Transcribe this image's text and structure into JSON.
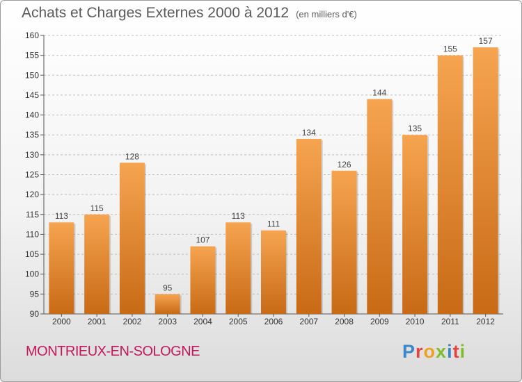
{
  "header": {
    "title": "Achats et Charges Externes 2000 à 2012",
    "unit": "(en milliers d'€)"
  },
  "footer": {
    "location": "MONTRIEUX-EN-SOLOGNE",
    "logo": [
      "P",
      "r",
      "o",
      "x",
      "i",
      "t",
      "i"
    ]
  },
  "colors": {
    "bar_top": "#f6a450",
    "bar_bottom": "#c86a16",
    "grid": "#bdbdbd",
    "location": "#c2185b",
    "logo": [
      "#3a88c8",
      "#e8423c",
      "#f0a020",
      "#7bbf2a",
      "#3a88c8",
      "#e8423c",
      "#7bbf2a"
    ]
  },
  "chart_data": {
    "type": "bar",
    "title": "Achats et Charges Externes 2000 à 2012",
    "subtitle": "(en milliers d'€)",
    "xlabel": "",
    "ylabel": "",
    "categories": [
      "2000",
      "2001",
      "2002",
      "2003",
      "2004",
      "2005",
      "2006",
      "2007",
      "2008",
      "2009",
      "2010",
      "2011",
      "2012"
    ],
    "values": [
      113,
      115,
      128,
      95,
      107,
      113,
      111,
      134,
      126,
      144,
      135,
      155,
      157
    ],
    "ylim": [
      90,
      160
    ],
    "yticks": [
      90,
      95,
      100,
      105,
      110,
      115,
      120,
      125,
      130,
      135,
      140,
      145,
      150,
      155,
      160
    ],
    "grid": "horizontal dashed",
    "legend": "none"
  }
}
